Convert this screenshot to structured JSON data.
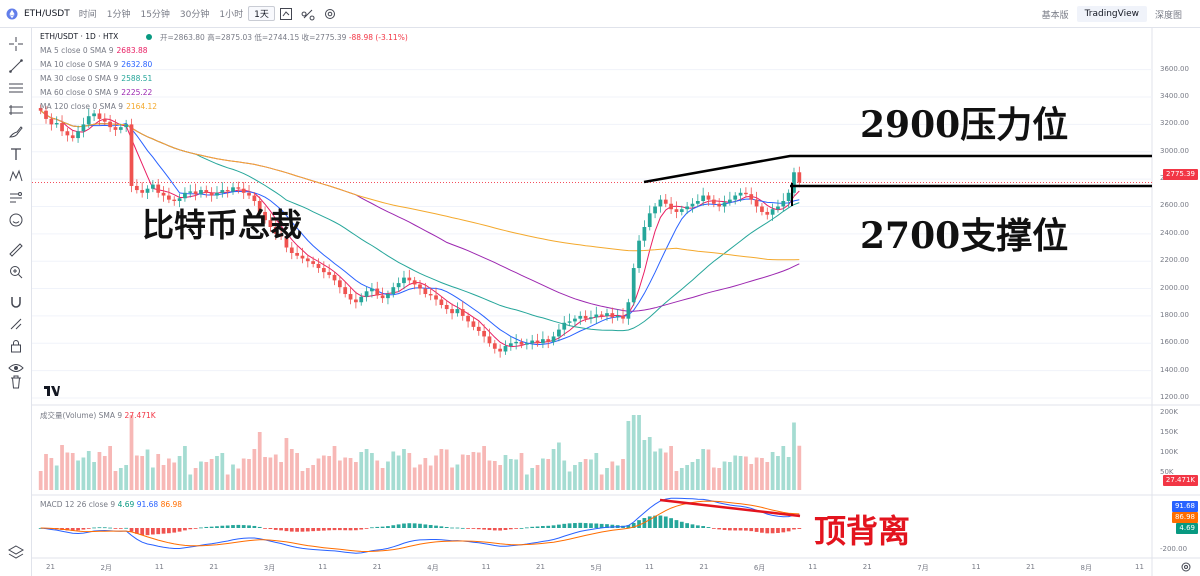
{
  "toolbar": {
    "symbol": "ETH/USDT",
    "intervals": [
      {
        "label": "时间",
        "active": false
      },
      {
        "label": "1分钟",
        "active": false
      },
      {
        "label": "15分钟",
        "active": false
      },
      {
        "label": "30分钟",
        "active": false
      },
      {
        "label": "1小时",
        "active": false
      },
      {
        "label": "1天",
        "active": true
      }
    ],
    "view_tabs": [
      {
        "label": "基本版",
        "active": false
      },
      {
        "label": "TradingView",
        "active": true
      },
      {
        "label": "深度图",
        "active": false
      }
    ]
  },
  "legend": {
    "title": "ETH/USDT · 1D · HTX",
    "ohlc": {
      "open_label": "开=",
      "open": "2863.80",
      "high_label": "高=",
      "high": "2875.03",
      "low_label": "低=",
      "low": "2744.15",
      "close_label": "收=",
      "close": "2775.39",
      "change": "-88.98 (-3.11%)"
    },
    "ma": [
      {
        "label": "MA 5 close 0 SMA 9",
        "value": "2683.88",
        "color": "#e91e63"
      },
      {
        "label": "MA 10 close 0 SMA 9",
        "value": "2632.80",
        "color": "#2962ff"
      },
      {
        "label": "MA 30 close 0 SMA 9",
        "value": "2588.51",
        "color": "#26a69a"
      },
      {
        "label": "MA 60 close 0 SMA 9",
        "value": "2225.22",
        "color": "#9c27b0"
      },
      {
        "label": "MA 120 close 0 SMA 9",
        "value": "2164.12",
        "color": "#f4a92d"
      }
    ]
  },
  "annotations": {
    "resistance": "2900压力位",
    "support": "2700支撑位",
    "left_caption": "比特币总裁",
    "divergence": "顶背离"
  },
  "volume_pane": {
    "title": "成交量(Volume) SMA 9",
    "value": "27.471K",
    "axis": [
      "200K",
      "150K",
      "100K",
      "50K"
    ]
  },
  "macd_pane": {
    "title": "MACD 12 26 close 9",
    "v1": "4.69",
    "v2": "91.68",
    "v3": "86.98",
    "axis": [
      "-200.00"
    ]
  },
  "price_axis": [
    "3600.00",
    "3400.00",
    "3200.00",
    "3000.00",
    "2800.00",
    "2600.00",
    "2400.00",
    "2200.00",
    "2000.00",
    "1800.00",
    "1600.00",
    "1400.00",
    "1200.00"
  ],
  "last_price": "2775.39",
  "time_axis": [
    "21",
    "2月",
    "11",
    "21",
    "3月",
    "11",
    "21",
    "4月",
    "11",
    "21",
    "5月",
    "11",
    "21",
    "6月",
    "11",
    "21",
    "7月",
    "11",
    "21",
    "8月",
    "11"
  ],
  "chart_data": {
    "type": "candlestick",
    "title": "ETH/USDT · 1D · HTX",
    "ylim": [
      1200,
      3700
    ],
    "closes": [
      3300,
      3240,
      3200,
      3210,
      3150,
      3120,
      3100,
      3150,
      3200,
      3260,
      3280,
      3240,
      3220,
      3180,
      3160,
      3180,
      3200,
      2750,
      2720,
      2700,
      2730,
      2760,
      2700,
      2680,
      2650,
      2640,
      2660,
      2700,
      2710,
      2690,
      2720,
      2700,
      2680,
      2700,
      2720,
      2710,
      2740,
      2730,
      2700,
      2680,
      2640,
      2560,
      2500,
      2450,
      2400,
      2380,
      2300,
      2260,
      2240,
      2220,
      2200,
      2180,
      2150,
      2120,
      2100,
      2060,
      2010,
      1960,
      1920,
      1900,
      1940,
      1980,
      2000,
      1950,
      1930,
      1960,
      2010,
      2040,
      2080,
      2060,
      2030,
      2000,
      1960,
      1950,
      1920,
      1880,
      1850,
      1820,
      1850,
      1800,
      1760,
      1720,
      1690,
      1650,
      1600,
      1560,
      1540,
      1580,
      1600,
      1610,
      1590,
      1600,
      1620,
      1600,
      1630,
      1610,
      1650,
      1700,
      1750,
      1760,
      1780,
      1800,
      1780,
      1790,
      1810,
      1800,
      1820,
      1790,
      1800,
      1780,
      1900,
      2150,
      2350,
      2450,
      2550,
      2600,
      2650,
      2620,
      2580,
      2560,
      2580,
      2600,
      2620,
      2640,
      2680,
      2650,
      2620,
      2600,
      2630,
      2650,
      2680,
      2700,
      2690,
      2650,
      2600,
      2560,
      2540,
      2580,
      2600,
      2640,
      2700,
      2850,
      2775
    ]
  }
}
